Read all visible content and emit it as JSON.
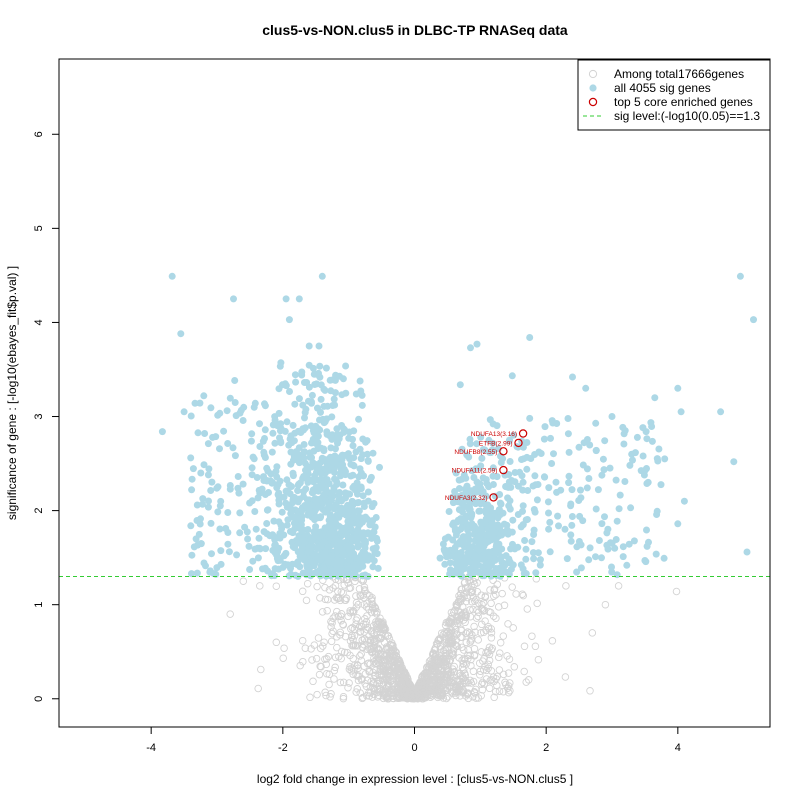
{
  "chart_data": {
    "type": "scatter",
    "title": "clus5-vs-NON.clus5 in DLBC-TP RNASeq data",
    "xlabel": "log2 fold change in expression level : [clus5-vs-NON.clus5 ]",
    "ylabel": "significance of gene : [-log10(ebayes_fit$p.val) ]",
    "xlim": [
      -5.4,
      5.4
    ],
    "ylim": [
      -0.3,
      6.8
    ],
    "xticks": [
      "-4",
      "-2",
      "0",
      "2",
      "4"
    ],
    "xtick_values": [
      -4,
      -2,
      0,
      2,
      4
    ],
    "yticks": [
      "0",
      "1",
      "2",
      "3",
      "4",
      "5",
      "6"
    ],
    "ytick_values": [
      0,
      1,
      2,
      3,
      4,
      5,
      6
    ],
    "sig_level": 1.3,
    "legend": {
      "placement": "top-right",
      "entries": [
        {
          "label": "Among total17666genes",
          "marker": "open-circle",
          "color": "#d3d3d3"
        },
        {
          "label": "all 4055 sig genes",
          "marker": "filled-circle",
          "color": "#add8e6"
        },
        {
          "label": "top 5 core enriched genes",
          "marker": "open-circle",
          "color": "#cc0000"
        },
        {
          "label": "sig level:(-log10(0.05)==1.3",
          "marker": "dashed-line",
          "color": "#33cc33"
        }
      ]
    },
    "core_genes": [
      {
        "label": "NDUFA13(3.16)",
        "x": 1.65,
        "y": 2.82
      },
      {
        "label": "ETFB(2.99)",
        "x": 1.58,
        "y": 2.72
      },
      {
        "label": "NDUFB8(2.55)",
        "x": 1.35,
        "y": 2.63
      },
      {
        "label": "NDUFA11(2.59)",
        "x": 1.35,
        "y": 2.43
      },
      {
        "label": "NDUFA3(2.32)",
        "x": 1.2,
        "y": 2.14
      }
    ],
    "highlight_sig_points": [
      {
        "x": -3.68,
        "y": 4.49
      },
      {
        "x": -1.4,
        "y": 4.49
      },
      {
        "x": -2.75,
        "y": 4.25
      },
      {
        "x": -1.95,
        "y": 4.25
      },
      {
        "x": -1.75,
        "y": 4.25
      },
      {
        "x": -1.9,
        "y": 4.03
      },
      {
        "x": -3.55,
        "y": 3.88
      },
      {
        "x": -1.6,
        "y": 3.75
      },
      {
        "x": -1.45,
        "y": 3.75
      },
      {
        "x": -3.83,
        "y": 2.84
      },
      {
        "x": -3.4,
        "y": 2.56
      },
      {
        "x": -3.3,
        "y": 2.06
      },
      {
        "x": -3.5,
        "y": 3.05
      },
      {
        "x": -3.2,
        "y": 3.22
      },
      {
        "x": -2.95,
        "y": 2.05
      },
      {
        "x": 4.95,
        "y": 4.49
      },
      {
        "x": 5.15,
        "y": 4.03
      },
      {
        "x": 1.75,
        "y": 3.84
      },
      {
        "x": 0.95,
        "y": 3.77
      },
      {
        "x": 0.85,
        "y": 3.73
      },
      {
        "x": 4.0,
        "y": 3.3
      },
      {
        "x": 4.05,
        "y": 3.05
      },
      {
        "x": 4.65,
        "y": 3.05
      },
      {
        "x": 3.65,
        "y": 3.2
      },
      {
        "x": 3.2,
        "y": 2.85
      },
      {
        "x": 3.3,
        "y": 2.6
      },
      {
        "x": 4.85,
        "y": 2.52
      },
      {
        "x": 5.05,
        "y": 1.56
      },
      {
        "x": 4.0,
        "y": 1.86
      },
      {
        "x": 4.1,
        "y": 2.1
      },
      {
        "x": 3.8,
        "y": 2.55
      },
      {
        "x": 3.5,
        "y": 1.47
      },
      {
        "x": 2.4,
        "y": 3.42
      },
      {
        "x": 2.6,
        "y": 3.3
      },
      {
        "x": 3.0,
        "y": 3.0
      },
      {
        "x": 3.55,
        "y": 2.3
      }
    ],
    "highlight_gray_points": [
      {
        "x": 3.98,
        "y": 1.14
      },
      {
        "x": -2.6,
        "y": 1.25
      },
      {
        "x": -2.35,
        "y": 1.2
      },
      {
        "x": -2.8,
        "y": 0.9
      },
      {
        "x": 2.3,
        "y": 1.2
      },
      {
        "x": 2.9,
        "y": 1.0
      },
      {
        "x": -2.1,
        "y": 0.6
      },
      {
        "x": 2.7,
        "y": 0.7
      },
      {
        "x": 3.1,
        "y": 1.2
      }
    ]
  }
}
